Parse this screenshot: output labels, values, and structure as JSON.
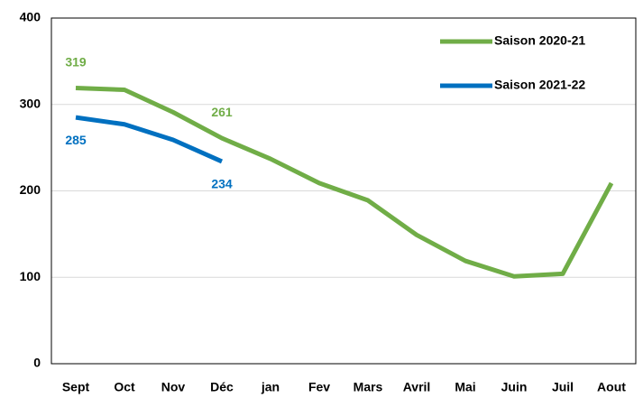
{
  "chart_data": {
    "type": "line",
    "categories": [
      "Sept",
      "Oct",
      "Nov",
      "Déc",
      "jan",
      "Fev",
      "Mars",
      "Avril",
      "Mai",
      "Juin",
      "Juil",
      "Aout"
    ],
    "series": [
      {
        "name": "Saison 2020-21",
        "color": "#70ad47",
        "values": [
          319,
          317,
          291,
          261,
          237,
          209,
          189,
          149,
          119,
          101,
          104,
          209
        ],
        "value_labels": [
          "319",
          null,
          null,
          "261",
          null,
          null,
          null,
          null,
          null,
          null,
          null,
          null
        ]
      },
      {
        "name": "Saison 2021-22",
        "color": "#0070c0",
        "values": [
          285,
          277,
          259,
          234,
          null,
          null,
          null,
          null,
          null,
          null,
          null,
          null
        ],
        "value_labels": [
          "285",
          null,
          null,
          "234",
          null,
          null,
          null,
          null,
          null,
          null,
          null,
          null
        ]
      }
    ],
    "ylim": [
      0,
      400
    ],
    "yticks": [
      0,
      100,
      200,
      300,
      400
    ],
    "grid": true,
    "legend": "upper right"
  }
}
